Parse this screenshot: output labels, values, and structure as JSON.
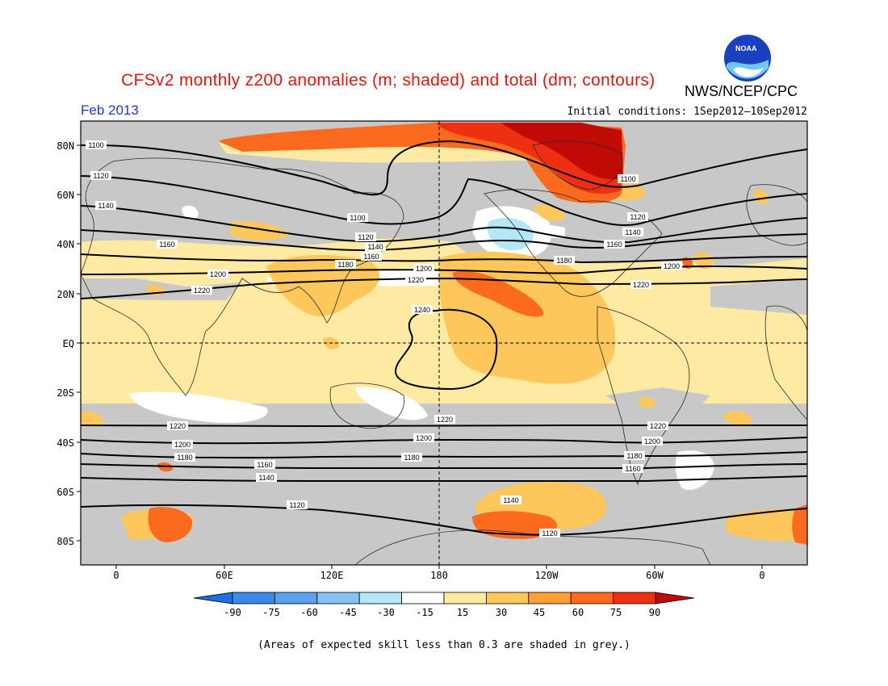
{
  "title": "CFSv2 monthly z200 anomalies (m; shaded) and total (dm; contours)",
  "agency": "NWS/NCEP/CPC",
  "period": "Feb 2013",
  "initial_conditions": "Initial conditions: 1Sep2012–10Sep2012",
  "logo_text": "NOAA",
  "footnote": "(Areas of expected skill less than 0.3 are shaded in grey.)",
  "lat_labels": [
    "80N",
    "60N",
    "40N",
    "20N",
    "EQ",
    "20S",
    "40S",
    "60S",
    "80S"
  ],
  "lon_labels": [
    "0",
    "60E",
    "120E",
    "180",
    "120W",
    "60W",
    "0"
  ],
  "colorbar_labels": [
    "-90",
    "-75",
    "-60",
    "-45",
    "-30",
    "-15",
    "15",
    "30",
    "45",
    "60",
    "75",
    "90"
  ],
  "colorbar_colors": [
    "#1f6fe0",
    "#3b89e6",
    "#5aa2ee",
    "#86c3f5",
    "#b4e8f4",
    "#ffffff",
    "#ffeaa3",
    "#fdc75c",
    "#fd9f35",
    "#fb6a1e",
    "#ef2f12",
    "#c00a06"
  ],
  "skill_grey": "#c8c8c8",
  "contour_labels": {
    "nh": [
      "1100",
      "1120",
      "1140",
      "1160",
      "1180",
      "1200",
      "1220",
      "1100",
      "1120",
      "1140",
      "1160",
      "1180",
      "1200",
      "1220",
      "1120",
      "1140",
      "1160",
      "1180",
      "1200",
      "1220",
      "1100",
      "1120",
      "1140",
      "1160",
      "1200",
      "1220"
    ],
    "tropics": [
      "1240"
    ],
    "sh": [
      "1220",
      "1200",
      "1180",
      "1160",
      "1140",
      "1120",
      "1220",
      "1200",
      "1180",
      "1140",
      "1120",
      "1220",
      "1200",
      "1180",
      "1160"
    ]
  }
}
